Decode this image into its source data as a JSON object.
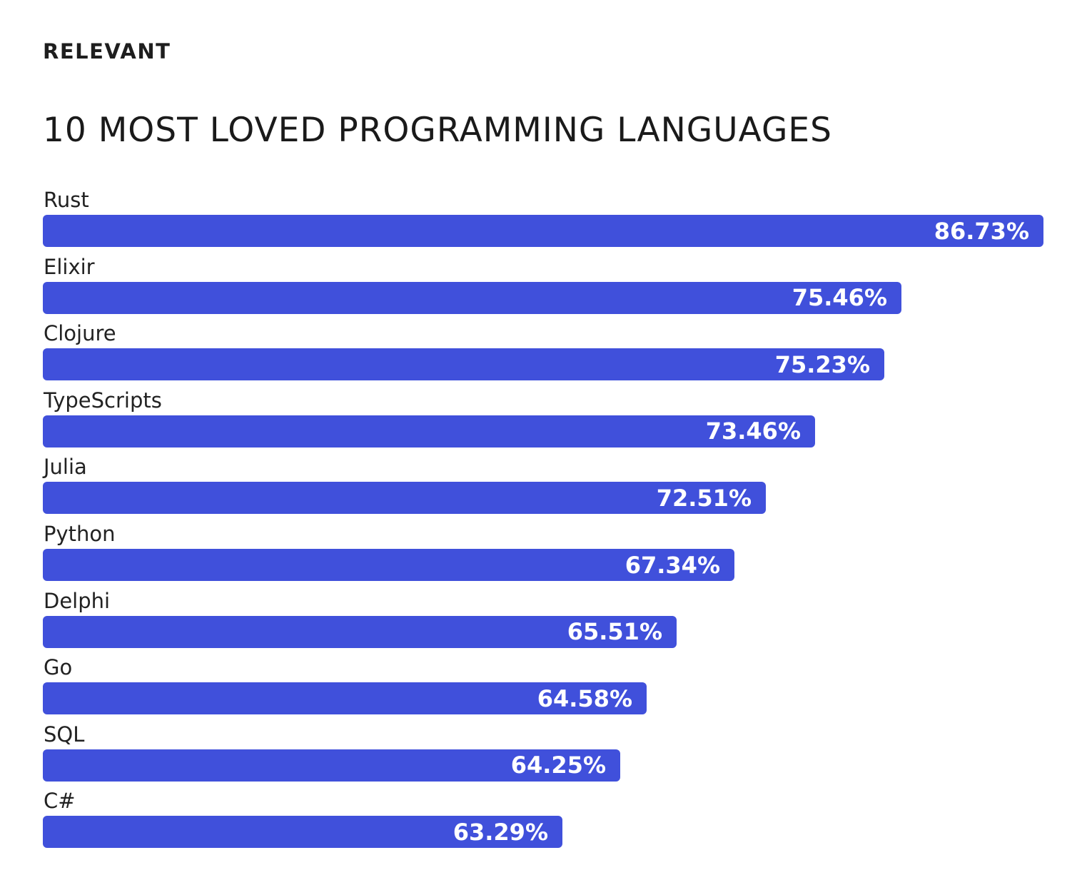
{
  "brand": "RELEVANT",
  "chart_data": {
    "type": "bar",
    "orientation": "horizontal",
    "title": "10 MOST LOVED PROGRAMMING LANGUAGES",
    "categories": [
      "Rust",
      "Elixir",
      "Clojure",
      "TypeScripts",
      "Julia",
      "Python",
      "Delphi",
      "Go",
      "SQL",
      "C#"
    ],
    "values": [
      86.73,
      75.46,
      75.23,
      73.46,
      72.51,
      67.34,
      65.51,
      64.58,
      64.25,
      63.29
    ],
    "value_labels": [
      "86.73%",
      "75.46%",
      "75.23%",
      "73.46%",
      "72.51%",
      "67.34%",
      "65.51%",
      "64.58%",
      "64.25%",
      "63.29%"
    ],
    "unit": "%",
    "bar_color": "#4050db",
    "grid": false,
    "legend": "none"
  }
}
